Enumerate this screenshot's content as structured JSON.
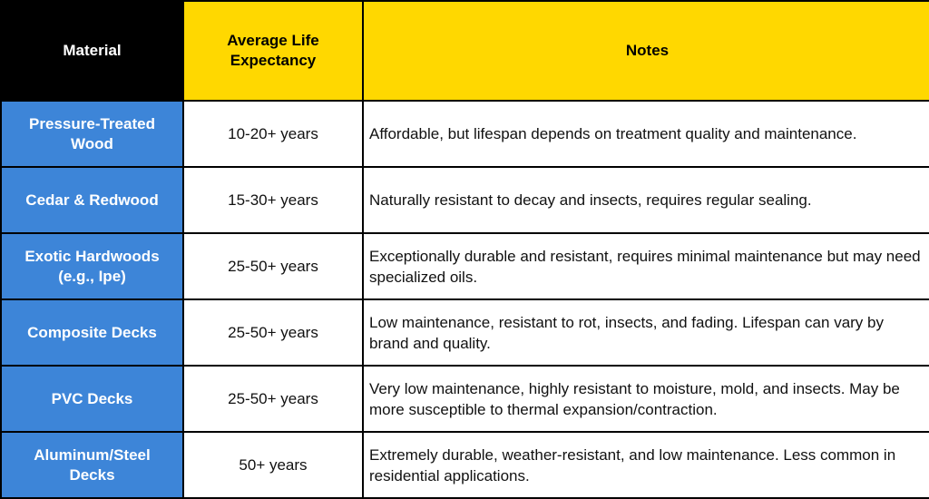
{
  "headers": {
    "material": "Material",
    "life": "Average Life Expectancy",
    "notes": "Notes"
  },
  "rows": [
    {
      "material": "Pressure-Treated Wood",
      "life": "10-20+ years",
      "notes": "Affordable, but lifespan depends on treatment quality and maintenance."
    },
    {
      "material": "Cedar & Redwood",
      "life": "15-30+ years",
      "notes": "Naturally resistant to decay and insects, requires regular sealing."
    },
    {
      "material": "Exotic Hardwoods (e.g., Ipe)",
      "life": "25-50+ years",
      "notes": "Exceptionally durable and resistant, requires minimal maintenance but may need specialized oils."
    },
    {
      "material": "Composite Decks",
      "life": "25-50+ years",
      "notes": "Low maintenance, resistant to rot, insects, and fading. Lifespan can vary by brand and quality."
    },
    {
      "material": "PVC Decks",
      "life": "25-50+ years",
      "notes": "Very low maintenance, highly resistant to moisture, mold, and insects. May be more susceptible to thermal expansion/contraction."
    },
    {
      "material": "Aluminum/Steel Decks",
      "life": "50+ years",
      "notes": "Extremely durable, weather-resistant, and low maintenance. Less common in residential applications."
    }
  ],
  "colors": {
    "header_dark": "#000000",
    "header_yellow": "#ffd800",
    "material_blue": "#3d85d8",
    "cell_white": "#ffffff"
  }
}
